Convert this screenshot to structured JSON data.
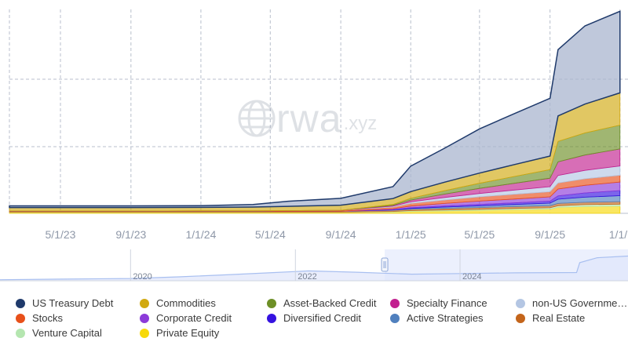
{
  "watermark": {
    "brand": "rwa",
    "suffix": ".xyz"
  },
  "colors": {
    "grid": "#b8bfcc",
    "axis_label": "#8f98a8",
    "navigator_fill": "#dfe6fb",
    "navigator_line": "#a8bff0"
  },
  "legend": [
    {
      "label": "US Treasury Debt",
      "color": "#1f3a6b"
    },
    {
      "label": "Commodities",
      "color": "#d1a910"
    },
    {
      "label": "Asset-Backed Credit",
      "color": "#6d8f26"
    },
    {
      "label": "Specialty Finance",
      "color": "#c2208f"
    },
    {
      "label": "non-US Governme…",
      "color": "#b4c6e3"
    },
    {
      "label": "Stocks",
      "color": "#e8501a"
    },
    {
      "label": "Corporate Credit",
      "color": "#8c3bd9"
    },
    {
      "label": "Diversified Credit",
      "color": "#3512e0"
    },
    {
      "label": "Active Strategies",
      "color": "#5080be"
    },
    {
      "label": "Real Estate",
      "color": "#c4651b"
    },
    {
      "label": "Venture Capital",
      "color": "#b5e6b0"
    },
    {
      "label": "Private Equity",
      "color": "#f7d90a"
    }
  ],
  "chart_data": {
    "type": "area",
    "stacked": true,
    "x_tick_labels": [
      "5/1/23",
      "9/1/23",
      "1/1/24",
      "5/1/24",
      "9/1/24",
      "1/1/25",
      "5/1/25",
      "9/1/25",
      "1/1/"
    ],
    "x": [
      "2023-02-01",
      "2023-05-01",
      "2023-09-01",
      "2024-01-01",
      "2024-04-01",
      "2024-06-01",
      "2024-09-01",
      "2024-12-01",
      "2025-01-01",
      "2025-03-01",
      "2025-05-01",
      "2025-07-01",
      "2025-09-01",
      "2025-09-15",
      "2025-11-01",
      "2026-01-01"
    ],
    "series": [
      {
        "name": "Private Equity",
        "values": [
          0.05,
          0.05,
          0.05,
          0.05,
          0.05,
          0.05,
          0.05,
          0.08,
          0.12,
          0.15,
          0.18,
          0.22,
          0.25,
          0.35,
          0.4,
          0.42
        ]
      },
      {
        "name": "Venture Capital",
        "values": [
          0.02,
          0.02,
          0.02,
          0.02,
          0.02,
          0.02,
          0.02,
          0.03,
          0.04,
          0.05,
          0.06,
          0.07,
          0.08,
          0.1,
          0.11,
          0.12
        ]
      },
      {
        "name": "Real Estate",
        "values": [
          0.05,
          0.05,
          0.05,
          0.05,
          0.05,
          0.05,
          0.06,
          0.07,
          0.08,
          0.09,
          0.1,
          0.11,
          0.12,
          0.13,
          0.14,
          0.15
        ]
      },
      {
        "name": "Active Strategies",
        "values": [
          0,
          0,
          0,
          0,
          0,
          0,
          0,
          0.02,
          0.05,
          0.08,
          0.1,
          0.12,
          0.15,
          0.25,
          0.3,
          0.35
        ]
      },
      {
        "name": "Diversified Credit",
        "values": [
          0,
          0,
          0,
          0,
          0,
          0,
          0,
          0.02,
          0.04,
          0.06,
          0.08,
          0.1,
          0.12,
          0.2,
          0.25,
          0.3
        ]
      },
      {
        "name": "Corporate Credit",
        "values": [
          0,
          0,
          0,
          0,
          0,
          0,
          0,
          0.05,
          0.1,
          0.15,
          0.2,
          0.22,
          0.25,
          0.4,
          0.45,
          0.5
        ]
      },
      {
        "name": "Stocks",
        "values": [
          0.02,
          0.02,
          0.02,
          0.03,
          0.03,
          0.04,
          0.05,
          0.1,
          0.15,
          0.2,
          0.25,
          0.28,
          0.3,
          0.35,
          0.38,
          0.4
        ]
      },
      {
        "name": "non-US Governme…",
        "values": [
          0,
          0,
          0,
          0,
          0,
          0,
          0,
          0.05,
          0.1,
          0.15,
          0.2,
          0.25,
          0.3,
          0.45,
          0.5,
          0.55
        ]
      },
      {
        "name": "Specialty Finance",
        "values": [
          0,
          0,
          0,
          0,
          0,
          0,
          0,
          0.05,
          0.1,
          0.2,
          0.3,
          0.4,
          0.5,
          0.8,
          0.9,
          1.0
        ]
      },
      {
        "name": "Asset-Backed Credit",
        "values": [
          0,
          0,
          0,
          0,
          0,
          0,
          0,
          0.05,
          0.1,
          0.2,
          0.3,
          0.4,
          0.5,
          1.2,
          1.3,
          1.4
        ]
      },
      {
        "name": "Commodities",
        "values": [
          0.2,
          0.2,
          0.2,
          0.2,
          0.22,
          0.25,
          0.3,
          0.35,
          0.4,
          0.5,
          0.6,
          0.7,
          0.8,
          1.5,
          1.7,
          1.9
        ]
      },
      {
        "name": "US Treasury Debt",
        "values": [
          0.1,
          0.1,
          0.1,
          0.1,
          0.15,
          0.3,
          0.4,
          0.7,
          1.5,
          2.0,
          2.6,
          3.0,
          3.4,
          3.9,
          4.6,
          4.8
        ]
      }
    ],
    "navigator": {
      "tick_labels": [
        "2020",
        "2022",
        "2024"
      ],
      "selected_range": [
        "2023-02-01",
        "2026-01-01"
      ]
    },
    "legend_position": "bottom",
    "grid": true
  }
}
